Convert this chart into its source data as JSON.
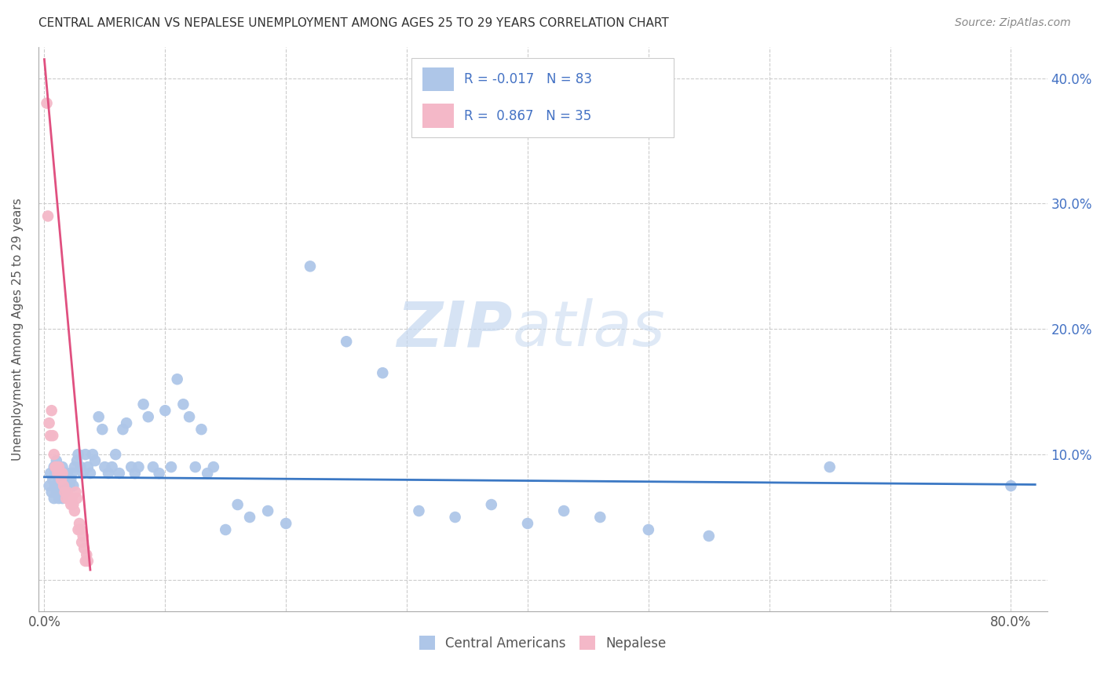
{
  "title": "CENTRAL AMERICAN VS NEPALESE UNEMPLOYMENT AMONG AGES 25 TO 29 YEARS CORRELATION CHART",
  "source": "Source: ZipAtlas.com",
  "ylabel": "Unemployment Among Ages 25 to 29 years",
  "watermark_zip": "ZIP",
  "watermark_atlas": "atlas",
  "legend_R": [
    -0.017,
    0.867
  ],
  "legend_N": [
    83,
    35
  ],
  "blue_color": "#aec6e8",
  "pink_color": "#f4b8c8",
  "blue_line_color": "#3b78c4",
  "pink_line_color": "#e05080",
  "xlim": [
    -0.005,
    0.83
  ],
  "ylim": [
    -0.025,
    0.425
  ],
  "blue_x": [
    0.004,
    0.005,
    0.006,
    0.007,
    0.008,
    0.008,
    0.009,
    0.009,
    0.01,
    0.01,
    0.011,
    0.011,
    0.012,
    0.012,
    0.013,
    0.013,
    0.014,
    0.014,
    0.015,
    0.015,
    0.016,
    0.016,
    0.017,
    0.018,
    0.019,
    0.02,
    0.021,
    0.022,
    0.023,
    0.024,
    0.025,
    0.027,
    0.028,
    0.03,
    0.032,
    0.034,
    0.036,
    0.038,
    0.04,
    0.042,
    0.045,
    0.048,
    0.05,
    0.053,
    0.056,
    0.059,
    0.062,
    0.065,
    0.068,
    0.072,
    0.075,
    0.078,
    0.082,
    0.086,
    0.09,
    0.095,
    0.1,
    0.105,
    0.11,
    0.115,
    0.12,
    0.125,
    0.13,
    0.135,
    0.14,
    0.15,
    0.16,
    0.17,
    0.185,
    0.2,
    0.22,
    0.25,
    0.28,
    0.31,
    0.34,
    0.37,
    0.4,
    0.43,
    0.46,
    0.5,
    0.55,
    0.65,
    0.8
  ],
  "blue_y": [
    0.075,
    0.085,
    0.07,
    0.08,
    0.065,
    0.09,
    0.075,
    0.085,
    0.07,
    0.095,
    0.075,
    0.085,
    0.065,
    0.08,
    0.075,
    0.085,
    0.07,
    0.08,
    0.065,
    0.09,
    0.075,
    0.08,
    0.07,
    0.075,
    0.085,
    0.08,
    0.075,
    0.08,
    0.085,
    0.075,
    0.09,
    0.095,
    0.1,
    0.09,
    0.085,
    0.1,
    0.09,
    0.085,
    0.1,
    0.095,
    0.13,
    0.12,
    0.09,
    0.085,
    0.09,
    0.1,
    0.085,
    0.12,
    0.125,
    0.09,
    0.085,
    0.09,
    0.14,
    0.13,
    0.09,
    0.085,
    0.135,
    0.09,
    0.16,
    0.14,
    0.13,
    0.09,
    0.12,
    0.085,
    0.09,
    0.04,
    0.06,
    0.05,
    0.055,
    0.045,
    0.25,
    0.19,
    0.165,
    0.055,
    0.05,
    0.06,
    0.045,
    0.055,
    0.05,
    0.04,
    0.035,
    0.09,
    0.075
  ],
  "pink_x": [
    0.002,
    0.003,
    0.004,
    0.005,
    0.006,
    0.007,
    0.008,
    0.009,
    0.01,
    0.011,
    0.012,
    0.013,
    0.014,
    0.015,
    0.016,
    0.017,
    0.018,
    0.019,
    0.02,
    0.021,
    0.022,
    0.023,
    0.024,
    0.025,
    0.026,
    0.027,
    0.028,
    0.029,
    0.03,
    0.031,
    0.032,
    0.033,
    0.034,
    0.035,
    0.036
  ],
  "pink_y": [
    0.38,
    0.29,
    0.125,
    0.115,
    0.135,
    0.115,
    0.1,
    0.09,
    0.09,
    0.085,
    0.09,
    0.085,
    0.08,
    0.085,
    0.075,
    0.07,
    0.065,
    0.07,
    0.065,
    0.065,
    0.06,
    0.065,
    0.06,
    0.055,
    0.07,
    0.065,
    0.04,
    0.045,
    0.04,
    0.03,
    0.035,
    0.025,
    0.015,
    0.02,
    0.015
  ],
  "blue_trend_x": [
    0.0,
    0.82
  ],
  "blue_trend_y": [
    0.082,
    0.076
  ],
  "pink_trend_x": [
    0.0,
    0.038
  ],
  "pink_trend_y": [
    0.415,
    0.008
  ]
}
